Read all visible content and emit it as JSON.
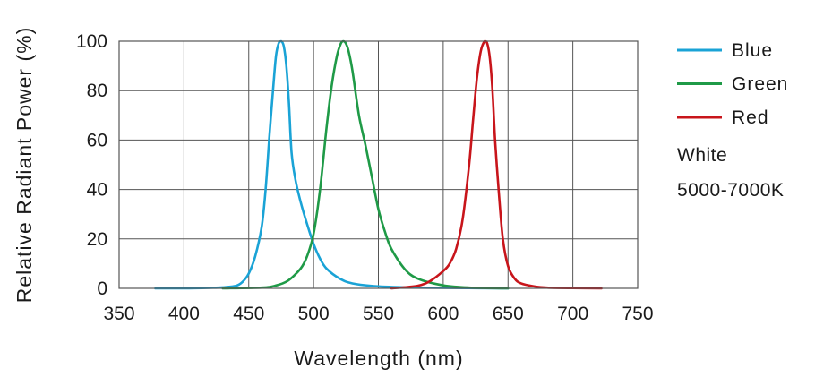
{
  "chart_data": {
    "type": "line",
    "title": "",
    "xlabel": "Wavelength (nm)",
    "ylabel": "Relative Radiant Power (%)",
    "xlim": [
      350,
      750
    ],
    "ylim": [
      0,
      100
    ],
    "xticks": [
      350,
      400,
      450,
      500,
      550,
      600,
      650,
      700,
      750
    ],
    "yticks": [
      0,
      20,
      40,
      60,
      80,
      100
    ],
    "grid": true,
    "legend_position": "right",
    "series": [
      {
        "name": "Blue",
        "color": "#1aa3d6",
        "x": [
          378,
          400,
          420,
          430,
          440,
          445,
          450,
          455,
          460,
          463,
          466,
          469,
          471,
          473,
          475,
          477,
          479,
          481,
          483,
          486,
          490,
          495,
          500,
          505,
          510,
          520,
          530,
          550,
          580,
          620,
          650
        ],
        "y": [
          0,
          0,
          0.2,
          0.4,
          1.0,
          2.5,
          6,
          13,
          25,
          40,
          62,
          82,
          94,
          99,
          100,
          98,
          90,
          75,
          55,
          44,
          35,
          26,
          18,
          12,
          8,
          4,
          2,
          0.8,
          0.3,
          0.1,
          0
        ]
      },
      {
        "name": "Green",
        "color": "#1f9a47",
        "x": [
          430,
          460,
          470,
          480,
          490,
          495,
          500,
          505,
          510,
          514,
          518,
          521,
          523,
          525,
          527,
          530,
          535,
          540,
          545,
          550,
          555,
          560,
          570,
          580,
          600,
          620,
          650
        ],
        "y": [
          0,
          0.3,
          1,
          3,
          8,
          13,
          22,
          40,
          65,
          82,
          94,
          99,
          100,
          99,
          96,
          88,
          70,
          58,
          45,
          32,
          23,
          16,
          8,
          4,
          1.2,
          0.3,
          0
        ]
      },
      {
        "name": "Red",
        "color": "#c8151b",
        "x": [
          560,
          580,
          590,
          600,
          605,
          610,
          615,
          620,
          623,
          626,
          629,
          632,
          634,
          636,
          638,
          640,
          643,
          646,
          650,
          655,
          660,
          670,
          680,
          700,
          722
        ],
        "y": [
          0,
          1,
          3,
          7,
          10,
          16,
          28,
          50,
          68,
          85,
          96,
          100,
          99,
          93,
          80,
          60,
          38,
          20,
          9,
          4,
          2,
          0.8,
          0.3,
          0.1,
          0
        ]
      }
    ],
    "legend": [
      {
        "label": "Blue",
        "color": "#1aa3d6"
      },
      {
        "label": "Green",
        "color": "#1f9a47"
      },
      {
        "label": "Red",
        "color": "#c8151b"
      }
    ],
    "note_lines": [
      "White",
      "5000-7000K"
    ]
  },
  "colors": {
    "grid": "#555555",
    "frame": "#555555",
    "text": "#1a1a1a"
  }
}
